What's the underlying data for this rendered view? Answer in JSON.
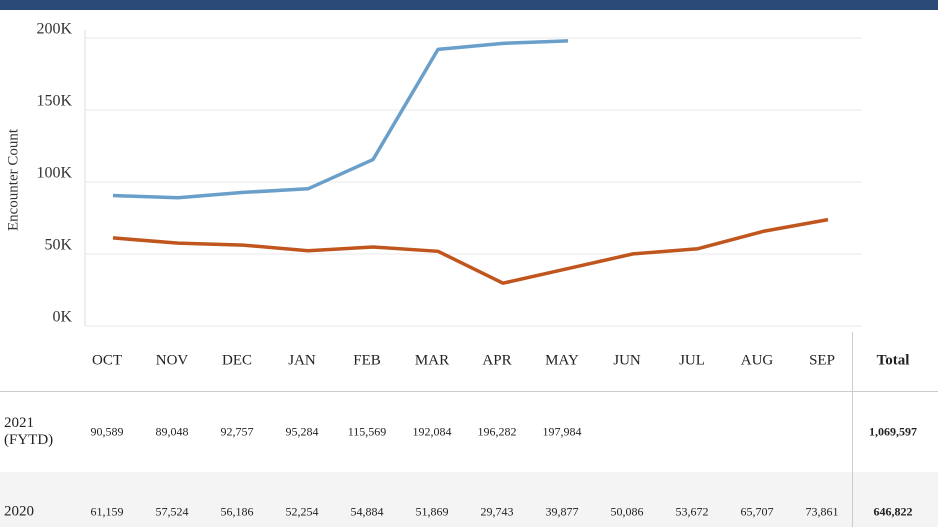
{
  "chart_data": {
    "type": "line",
    "y_label": "Encounter Count",
    "categories": [
      "OCT",
      "NOV",
      "DEC",
      "JAN",
      "FEB",
      "MAR",
      "APR",
      "MAY",
      "JUN",
      "JUL",
      "AUG",
      "SEP"
    ],
    "ylim": [
      0,
      200000
    ],
    "yticks": [
      {
        "value": 0,
        "label": "0K"
      },
      {
        "value": 50000,
        "label": "50K"
      },
      {
        "value": 100000,
        "label": "100K"
      },
      {
        "value": 150000,
        "label": "150K"
      },
      {
        "value": 200000,
        "label": "200K"
      }
    ],
    "grid": true,
    "total_header": "Total",
    "series": [
      {
        "name": "2021 (FYTD)",
        "color": "#6a9fc9",
        "values": [
          90589,
          89048,
          92757,
          95284,
          115569,
          192084,
          196282,
          197984,
          null,
          null,
          null,
          null
        ],
        "value_labels": [
          "90,589",
          "89,048",
          "92,757",
          "95,284",
          "115,569",
          "192,084",
          "196,282",
          "197,984",
          null,
          null,
          null,
          null
        ],
        "total": "1,069,597"
      },
      {
        "name": "2020",
        "color": "#c0561e",
        "values": [
          61159,
          57524,
          56186,
          52254,
          54884,
          51869,
          29743,
          39877,
          50086,
          53672,
          65707,
          73861
        ],
        "value_labels": [
          "61,159",
          "57,524",
          "56,186",
          "52,254",
          "54,884",
          "51,869",
          "29,743",
          "39,877",
          "50,086",
          "53,672",
          "65,707",
          "73,861"
        ],
        "total": "646,822"
      }
    ]
  }
}
